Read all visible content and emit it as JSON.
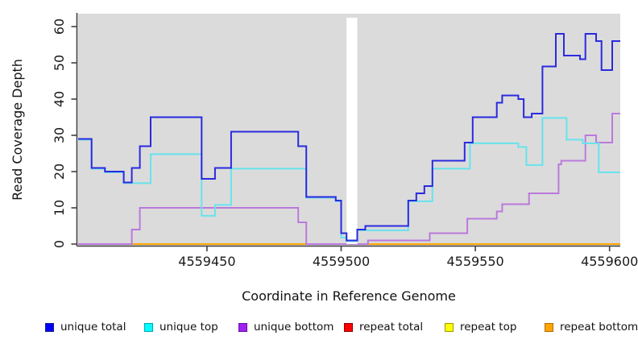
{
  "chart_data": {
    "type": "line",
    "subtype": "step-coverage",
    "title": "",
    "xlabel": "Coordinate in Reference Genome",
    "ylabel": "Read Coverage Depth",
    "xlim": [
      4559402,
      4559604
    ],
    "ylim": [
      0,
      60
    ],
    "x_ticks": [
      4559450,
      4559500,
      4559550,
      4559600
    ],
    "y_ticks": [
      0,
      10,
      20,
      30,
      40,
      50,
      60
    ],
    "grid": false,
    "panel_background": "#DBDBDB",
    "axis_color": "#404040",
    "tick_label_color": "#1a1a1a",
    "gap_region": {
      "x_start": 4559502,
      "x_end": 4559506,
      "color": "#ffffff"
    },
    "legend_position": "bottom",
    "series": [
      {
        "name": "unique total",
        "color": "#2A2ADF",
        "points": [
          [
            4559402,
            29
          ],
          [
            4559407,
            21
          ],
          [
            4559412,
            20
          ],
          [
            4559419,
            17
          ],
          [
            4559422,
            21
          ],
          [
            4559425,
            27
          ],
          [
            4559429,
            35
          ],
          [
            4559448,
            18
          ],
          [
            4559453,
            21
          ],
          [
            4559459,
            31
          ],
          [
            4559484,
            27
          ],
          [
            4559487,
            13
          ],
          [
            4559498,
            12
          ],
          [
            4559500,
            3
          ],
          [
            4559502,
            1
          ],
          [
            4559506,
            4
          ],
          [
            4559509,
            5
          ],
          [
            4559525,
            12
          ],
          [
            4559528,
            14
          ],
          [
            4559531,
            16
          ],
          [
            4559534,
            23
          ],
          [
            4559546,
            28
          ],
          [
            4559549,
            35
          ],
          [
            4559558,
            39
          ],
          [
            4559560,
            41
          ],
          [
            4559566,
            40
          ],
          [
            4559568,
            35
          ],
          [
            4559571,
            36
          ],
          [
            4559575,
            49
          ],
          [
            4559580,
            58
          ],
          [
            4559583,
            52
          ],
          [
            4559589,
            51
          ],
          [
            4559591,
            58
          ],
          [
            4559595,
            56
          ],
          [
            4559597,
            48
          ],
          [
            4559601,
            56
          ],
          [
            4559604,
            56
          ]
        ]
      },
      {
        "name": "unique top",
        "color": "#66E4EC",
        "points": [
          [
            4559402,
            29
          ],
          [
            4559407,
            21
          ],
          [
            4559412,
            20
          ],
          [
            4559419,
            17
          ],
          [
            4559429,
            25
          ],
          [
            4559448,
            8
          ],
          [
            4559453,
            11
          ],
          [
            4559459,
            21
          ],
          [
            4559487,
            13
          ],
          [
            4559498,
            12
          ],
          [
            4559500,
            2
          ],
          [
            4559502,
            1
          ],
          [
            4559506,
            4
          ],
          [
            4559525,
            12
          ],
          [
            4559534,
            21
          ],
          [
            4559548,
            28
          ],
          [
            4559566,
            27
          ],
          [
            4559569,
            22
          ],
          [
            4559575,
            35
          ],
          [
            4559584,
            29
          ],
          [
            4559590,
            28
          ],
          [
            4559596,
            20
          ],
          [
            4559604,
            20
          ]
        ]
      },
      {
        "name": "unique bottom",
        "color": "#BB79DC",
        "points": [
          [
            4559402,
            0
          ],
          [
            4559422,
            4
          ],
          [
            4559425,
            10
          ],
          [
            4559484,
            6
          ],
          [
            4559487,
            0
          ],
          [
            4559510,
            1
          ],
          [
            4559533,
            3
          ],
          [
            4559547,
            7
          ],
          [
            4559558,
            9
          ],
          [
            4559560,
            11
          ],
          [
            4559570,
            14
          ],
          [
            4559581,
            22
          ],
          [
            4559582,
            23
          ],
          [
            4559591,
            30
          ],
          [
            4559595,
            28
          ],
          [
            4559601,
            36
          ],
          [
            4559604,
            36
          ]
        ]
      },
      {
        "name": "repeat total",
        "color": "#FF0000",
        "points": [
          [
            4559402,
            0
          ],
          [
            4559604,
            0
          ]
        ]
      },
      {
        "name": "repeat top",
        "color": "#FFFF00",
        "points": [
          [
            4559402,
            0
          ],
          [
            4559604,
            0
          ]
        ]
      },
      {
        "name": "repeat bottom",
        "color": "#FFA500",
        "points": [
          [
            4559402,
            0
          ],
          [
            4559604,
            0
          ]
        ]
      }
    ]
  },
  "legend": {
    "items": [
      {
        "label": "unique total",
        "color": "#0000FF",
        "border": "#1A1A8C"
      },
      {
        "label": "unique top",
        "color": "#00FFFF",
        "border": "#00A3B8"
      },
      {
        "label": "unique bottom",
        "color": "#A020F0",
        "border": "#6A0DAD"
      },
      {
        "label": "repeat total",
        "color": "#FF0000",
        "border": "#8B0000"
      },
      {
        "label": "repeat top",
        "color": "#FFFF00",
        "border": "#9B9B00"
      },
      {
        "label": "repeat bottom",
        "color": "#FFA500",
        "border": "#B36B00"
      }
    ]
  }
}
